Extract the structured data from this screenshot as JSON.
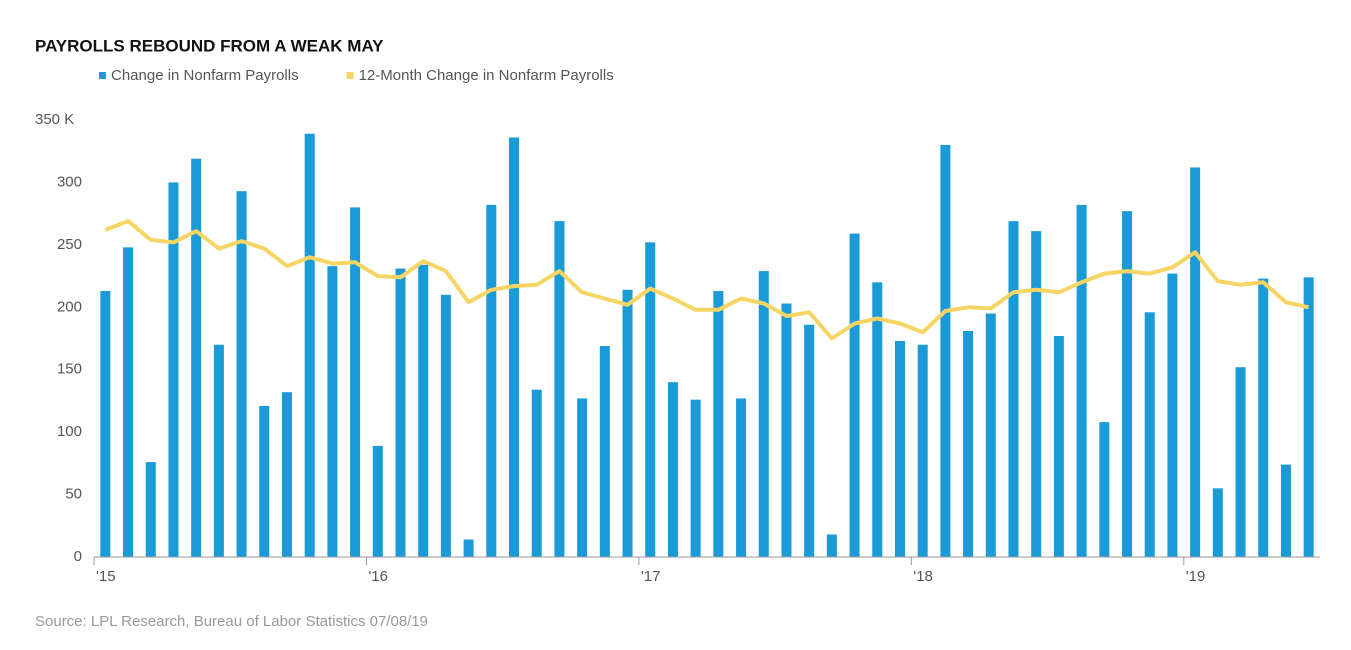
{
  "chart_data": {
    "type": "bar_line",
    "title": "PAYROLLS REBOUND FROM A WEAK MAY",
    "source": "Source: LPL Research, Bureau of Labor Statistics  07/08/19",
    "categories": [
      "'15",
      null,
      null,
      null,
      null,
      null,
      null,
      null,
      null,
      null,
      null,
      null,
      "'16",
      null,
      null,
      null,
      null,
      null,
      null,
      null,
      null,
      null,
      null,
      null,
      "'17",
      null,
      null,
      null,
      null,
      null,
      null,
      null,
      null,
      null,
      null,
      null,
      "'18",
      null,
      null,
      null,
      null,
      null,
      null,
      null,
      null,
      null,
      null,
      null,
      "'19",
      null,
      null,
      null,
      null,
      null
    ],
    "series": [
      {
        "name": "Change in Nonfarm Payrolls",
        "type": "bar",
        "color": "#1a9ad6",
        "values": [
          213,
          248,
          76,
          300,
          319,
          170,
          293,
          121,
          132,
          339,
          233,
          280,
          89,
          231,
          234,
          210,
          14,
          282,
          336,
          134,
          269,
          127,
          169,
          214,
          252,
          140,
          126,
          213,
          127,
          229,
          203,
          186,
          18,
          259,
          220,
          173,
          170,
          330,
          181,
          195,
          269,
          261,
          177,
          282,
          108,
          277,
          196,
          227,
          312,
          55,
          152,
          223,
          74,
          224
        ]
      },
      {
        "name": "12-Month Change in Nonfarm Payrolls",
        "type": "line",
        "color": "#f7d564",
        "values": [
          262,
          269,
          254,
          252,
          261,
          247,
          253,
          247,
          233,
          240,
          235,
          236,
          225,
          224,
          237,
          229,
          204,
          214,
          217,
          218,
          229,
          212,
          207,
          202,
          215,
          207,
          198,
          198,
          207,
          203,
          193,
          196,
          175,
          187,
          191,
          187,
          180,
          197,
          200,
          199,
          212,
          214,
          212,
          220,
          227,
          229,
          227,
          232,
          244,
          221,
          218,
          220,
          204,
          200
        ]
      }
    ],
    "ylim": [
      0,
      350
    ],
    "yticks": [
      0,
      50,
      100,
      150,
      200,
      250,
      300,
      {
        "value": 350,
        "label": "350 K"
      }
    ],
    "grid": false,
    "legend": "top-left"
  }
}
